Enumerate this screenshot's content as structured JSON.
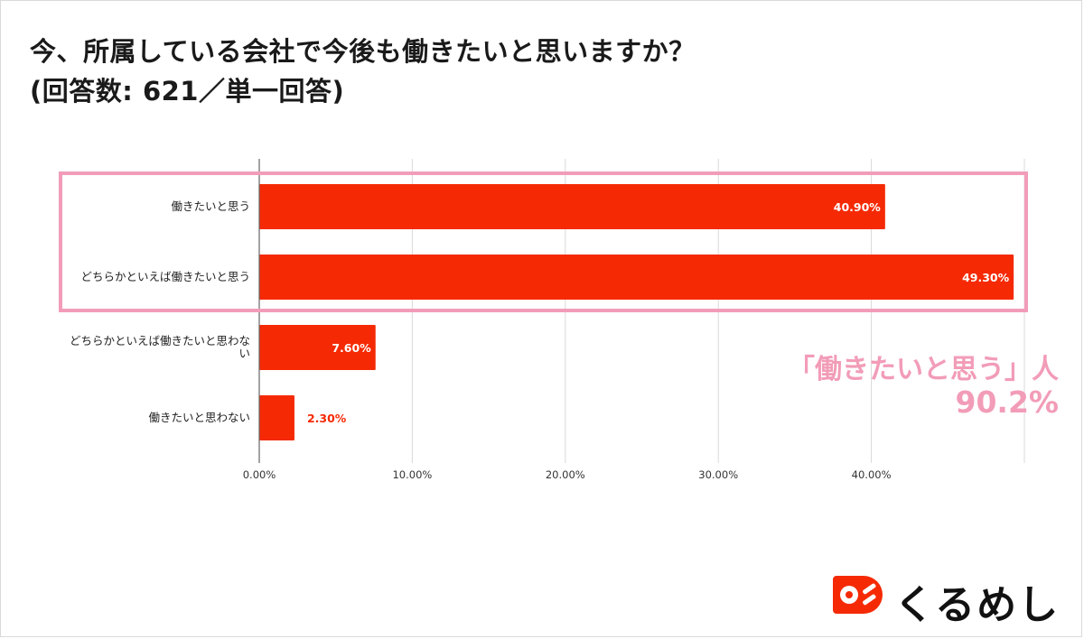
{
  "title": "今、所属している会社で今後も働きたいと思いますか？",
  "subtitle": "(回答数: 621／単一回答)",
  "callout": {
    "label": "「働きたいと思う」人",
    "value": "90.2%"
  },
  "logo": {
    "text": "くるめし"
  },
  "colors": {
    "bar": "#f52a05",
    "highlight_box": "#f29cb8",
    "grid": "#d9d9d9",
    "axis": "#666666",
    "text": "#1a1a1a"
  },
  "chart_data": {
    "type": "bar",
    "orientation": "horizontal",
    "categories": [
      "働きたいと思う",
      "どちらかといえば働きたいと思う",
      "どちらかといえば働きたいと思わない",
      "働きたいと思わない"
    ],
    "values": [
      40.9,
      49.3,
      7.6,
      2.3
    ],
    "value_labels": [
      "40.90%",
      "49.30%",
      "7.60%",
      "2.30%"
    ],
    "x_ticks": [
      0,
      10,
      20,
      30,
      40
    ],
    "x_tick_labels": [
      "0.00%",
      "10.00%",
      "20.00%",
      "30.00%",
      "40.00%"
    ],
    "xlim": [
      0,
      50
    ],
    "grid": true,
    "highlighted_categories": [
      0,
      1
    ]
  }
}
